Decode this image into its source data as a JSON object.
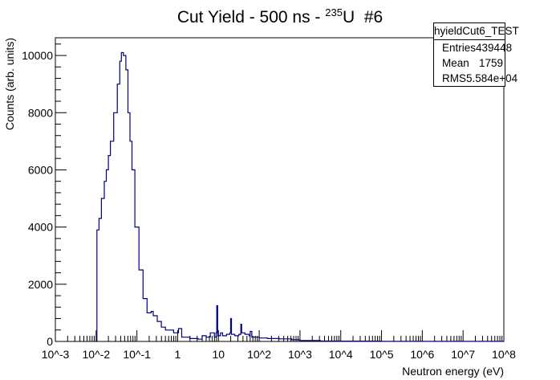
{
  "title": {
    "main": "Cut Yield - 500 ns - ",
    "isotope_mass": "235",
    "element": "U",
    "suffix": "#6"
  },
  "stats": {
    "name": "hyieldCut6_TEST",
    "rows": [
      {
        "label": "Entries",
        "value": "439448"
      },
      {
        "label": "Mean",
        "value": "1759"
      },
      {
        "label": "RMS",
        "value": "5.584e+04"
      }
    ]
  },
  "chart_data": {
    "type": "line",
    "title": "Cut Yield - 500 ns - 235U #6",
    "xlabel": "Neutron energy (eV)",
    "ylabel": "Counts (arb. units)",
    "xscale": "log",
    "xlim": [
      0.001,
      100000000
    ],
    "ylim": [
      0,
      10620
    ],
    "x_tick_labels": [
      "10^-3",
      "10^-2",
      "10^-1",
      "1",
      "10",
      "10^2",
      "10^3",
      "10^4",
      "10^5",
      "10^6",
      "10^7",
      "10^8"
    ],
    "y_tick_labels": [
      "0",
      "2000",
      "4000",
      "6000",
      "8000",
      "10000"
    ],
    "y_ticks": [
      0,
      2000,
      4000,
      6000,
      8000,
      10000
    ],
    "line_color": "#000080",
    "series": [
      {
        "name": "hyieldCut6_TEST",
        "log10_x": [
          -2.0,
          -1.98,
          -1.93,
          -1.87,
          -1.8,
          -1.75,
          -1.7,
          -1.65,
          -1.57,
          -1.48,
          -1.42,
          -1.38,
          -1.33,
          -1.27,
          -1.22,
          -1.17,
          -1.12,
          -1.05,
          -0.95,
          -0.85,
          -0.75,
          -0.65,
          -0.6,
          -0.5,
          -0.4,
          -0.3,
          -0.1,
          0.02,
          0.1,
          0.3,
          0.5,
          0.6,
          0.7,
          0.8,
          0.9,
          0.94,
          0.96,
          0.98,
          1.05,
          1.1,
          1.2,
          1.28,
          1.3,
          1.32,
          1.4,
          1.5,
          1.55,
          1.57,
          1.65,
          1.75,
          1.78,
          1.82,
          1.9,
          2.0,
          2.2,
          2.5,
          2.8,
          3.0,
          3.5,
          4.0,
          5.0,
          6.0,
          7.0,
          8.0
        ],
        "counts": [
          0,
          3900,
          4300,
          5000,
          5600,
          6000,
          6500,
          7000,
          8000,
          9000,
          9800,
          10100,
          10000,
          9500,
          8000,
          7000,
          6000,
          4000,
          2500,
          1500,
          1000,
          1050,
          900,
          700,
          500,
          400,
          300,
          450,
          150,
          100,
          80,
          200,
          150,
          300,
          150,
          300,
          1250,
          200,
          300,
          200,
          250,
          300,
          800,
          250,
          200,
          250,
          600,
          300,
          250,
          200,
          350,
          150,
          150,
          120,
          100,
          90,
          60,
          30,
          15,
          10,
          5,
          3,
          2,
          0
        ]
      }
    ]
  }
}
